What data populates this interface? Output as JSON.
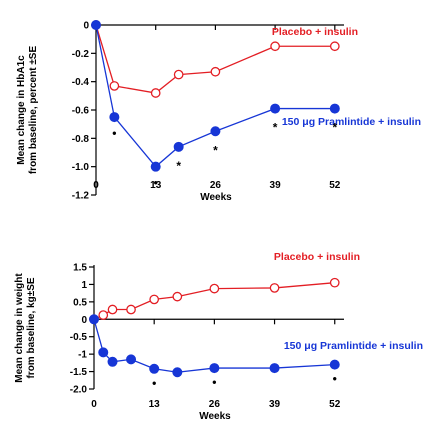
{
  "chart_data": [
    {
      "type": "line",
      "ylabel_lines": [
        "Mean change in HbA1c",
        "from baseline, percent ±SE"
      ],
      "xlabel": "Weeks",
      "xlim": [
        0,
        54
      ],
      "ylim": [
        -1.2,
        0
      ],
      "xticks": [
        0,
        13,
        26,
        39,
        52
      ],
      "yticks": [
        0,
        -0.2,
        -0.4,
        -0.6,
        -0.8,
        -1.0,
        -1.2
      ],
      "ytick_labels": [
        "0",
        "-0.2",
        "-0.4",
        "-0.6",
        "-0.8",
        "-1.0",
        "-1.2"
      ],
      "series": [
        {
          "name": "Placebo + insulin",
          "color": "#e31e24",
          "marker": "open-circle",
          "x": [
            0,
            4,
            13,
            18,
            26,
            39,
            52
          ],
          "y": [
            0,
            -0.43,
            -0.48,
            -0.35,
            -0.33,
            -0.15,
            -0.15
          ]
        },
        {
          "name": "150 μg Pramlintide + insulin",
          "color": "#1736d6",
          "marker": "filled-circle",
          "x": [
            0,
            4,
            13,
            18,
            26,
            39,
            52
          ],
          "y": [
            0,
            -0.65,
            -1.0,
            -0.86,
            -0.75,
            -0.59,
            -0.59
          ]
        }
      ],
      "significance_markers": [
        {
          "x": 4,
          "symbol": "•"
        },
        {
          "x": 13,
          "symbol": "•"
        },
        {
          "x": 18,
          "symbol": "*"
        },
        {
          "x": 26,
          "symbol": "*"
        },
        {
          "x": 39,
          "symbol": "*"
        },
        {
          "x": 52,
          "symbol": "*"
        }
      ]
    },
    {
      "type": "line",
      "ylabel_lines": [
        "Mean change in weight",
        "from baseline, kg±SE"
      ],
      "xlabel": "Weeks",
      "xlim": [
        0,
        54
      ],
      "ylim": [
        -2.0,
        1.5
      ],
      "xticks": [
        0,
        13,
        26,
        39,
        52
      ],
      "yticks": [
        1.5,
        1,
        0.5,
        0,
        -0.5,
        -1,
        -1.5,
        -2.0
      ],
      "ytick_labels": [
        "1.5",
        "1",
        "0.5",
        "0",
        "-0.5",
        "-1",
        "-1.5",
        "-2.0"
      ],
      "series": [
        {
          "name": "Placebo + insulin",
          "color": "#e31e24",
          "marker": "open-circle",
          "x": [
            0,
            2,
            4,
            8,
            13,
            18,
            26,
            39,
            52
          ],
          "y": [
            0,
            0.12,
            0.28,
            0.28,
            0.57,
            0.65,
            0.88,
            0.9,
            1.05
          ]
        },
        {
          "name": "150 μg Pramlintide + insulin",
          "color": "#1736d6",
          "marker": "filled-circle",
          "x": [
            0,
            2,
            4,
            8,
            13,
            18,
            26,
            39,
            52
          ],
          "y": [
            0,
            -0.95,
            -1.22,
            -1.15,
            -1.42,
            -1.52,
            -1.4,
            -1.4,
            -1.3
          ]
        }
      ],
      "significance_markers": [
        {
          "x": 13,
          "symbol": "•"
        },
        {
          "x": 26,
          "symbol": "•"
        },
        {
          "x": 52,
          "symbol": "•"
        }
      ]
    }
  ]
}
